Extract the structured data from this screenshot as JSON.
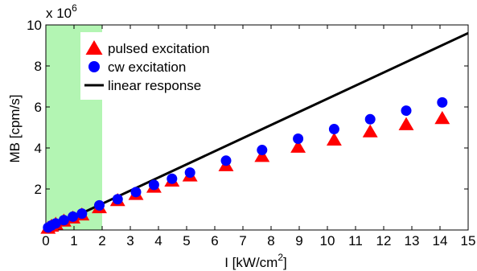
{
  "chart_data": {
    "type": "scatter",
    "xlabel": "I [kW/cm",
    "xlabel_sup": "2",
    "xlabel_tail": "]",
    "ylabel": "MB [cpm/s]",
    "y_multiplier_base": "x 10",
    "y_multiplier_exp": "6",
    "xlim": [
      0,
      15
    ],
    "ylim": [
      0,
      10
    ],
    "xticks": [
      "0",
      "1",
      "2",
      "3",
      "4",
      "5",
      "6",
      "7",
      "8",
      "9",
      "10",
      "11",
      "12",
      "13",
      "14",
      "15"
    ],
    "yticks": [
      "2",
      "4",
      "6",
      "8",
      "10"
    ],
    "y_tick_values": [
      2,
      4,
      6,
      8,
      10
    ],
    "grid": false,
    "legend_position": "top-left",
    "shaded_region": {
      "x_range": [
        0,
        2
      ],
      "color": "#b3f5b3"
    },
    "series": [
      {
        "name": "pulsed excitation",
        "marker": "triangle",
        "color": "#ff0000",
        "x": [
          0.08,
          0.2,
          0.35,
          0.64,
          0.96,
          1.28,
          1.9,
          2.55,
          3.2,
          3.84,
          4.48,
          5.12,
          6.4,
          7.68,
          8.96,
          10.24,
          11.52,
          12.8,
          14.08
        ],
        "y": [
          0.1,
          0.2,
          0.3,
          0.45,
          0.6,
          0.75,
          1.1,
          1.45,
          1.75,
          2.1,
          2.4,
          2.65,
          3.15,
          3.6,
          4.05,
          4.4,
          4.8,
          5.15,
          5.45
        ]
      },
      {
        "name": "cw excitation",
        "marker": "circle",
        "color": "#0000ff",
        "x": [
          0.08,
          0.2,
          0.35,
          0.64,
          0.96,
          1.28,
          1.9,
          2.55,
          3.2,
          3.84,
          4.48,
          5.12,
          6.4,
          7.68,
          8.96,
          10.24,
          11.52,
          12.8,
          14.08
        ],
        "y": [
          0.12,
          0.22,
          0.32,
          0.48,
          0.65,
          0.8,
          1.2,
          1.5,
          1.85,
          2.2,
          2.5,
          2.8,
          3.38,
          3.9,
          4.45,
          4.92,
          5.4,
          5.82,
          6.22
        ]
      },
      {
        "name": "linear response",
        "marker": "line",
        "color": "#000000",
        "x": [
          0,
          15
        ],
        "y": [
          0,
          9.6
        ]
      }
    ]
  }
}
